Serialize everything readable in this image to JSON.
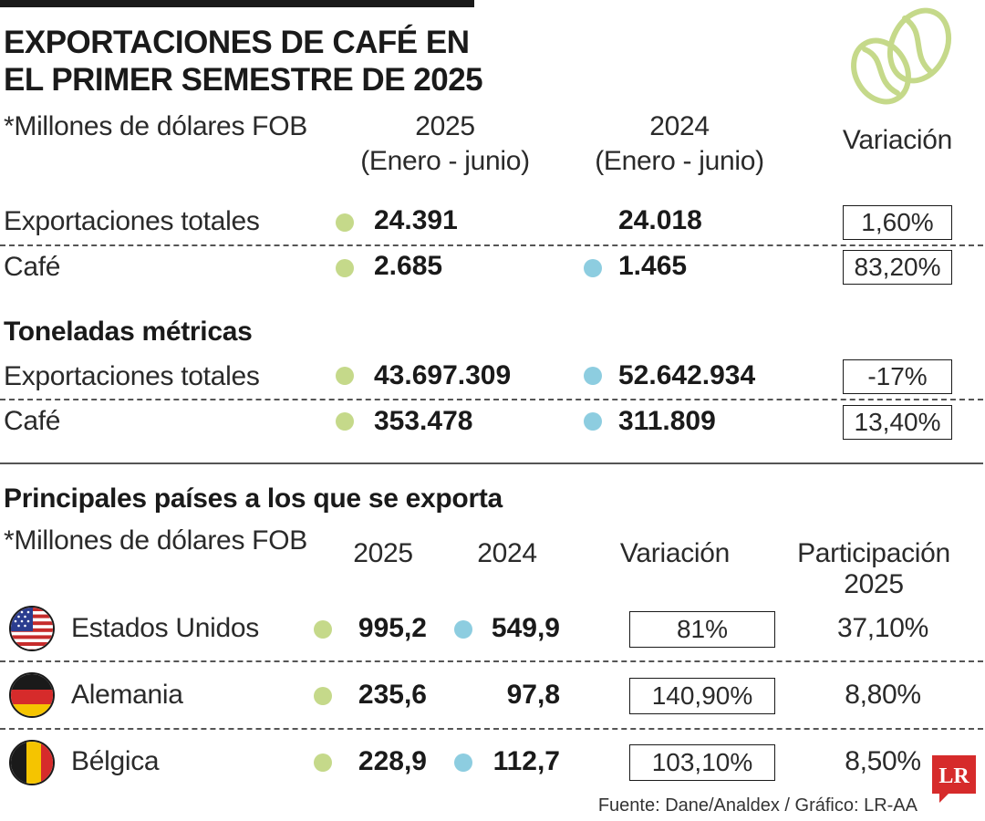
{
  "header": {
    "title_line1": "EXPORTACIONES DE CAFÉ EN",
    "title_line2": "EL PRIMER SEMESTRE DE 2025"
  },
  "summary": {
    "unit_note": "*Millones de dólares FOB",
    "col_2025_year": "2025",
    "col_2025_period": "(Enero - junio)",
    "col_2024_year": "2024",
    "col_2024_period": "(Enero - junio)",
    "col_variation": "Variación",
    "usd_rows": [
      {
        "label": "Exportaciones totales",
        "v2025": "24.391",
        "v2024": "24.018",
        "variation": "1,60%"
      },
      {
        "label": "Café",
        "v2025": "2.685",
        "v2024": "1.465",
        "variation": "83,20%"
      }
    ],
    "tonnes_heading": "Toneladas métricas",
    "tonnes_rows": [
      {
        "label": "Exportaciones totales",
        "v2025": "43.697.309",
        "v2024": "52.642.934",
        "variation": "-17%"
      },
      {
        "label": "Café",
        "v2025": "353.478",
        "v2024": "311.809",
        "variation": "13,40%"
      }
    ]
  },
  "countries": {
    "heading": "Principales países a los que se exporta",
    "unit_note": "*Millones de dólares FOB",
    "col_2025": "2025",
    "col_2024": "2024",
    "col_variation": "Variación",
    "col_share_line1": "Participación",
    "col_share_line2": "2025",
    "rows": [
      {
        "country": "Estados Unidos",
        "flag_icon": "us-flag-icon",
        "v2025": "995,2",
        "v2024": "549,9",
        "variation": "81%",
        "share": "37,10%"
      },
      {
        "country": "Alemania",
        "flag_icon": "germany-flag-icon",
        "v2025": "235,6",
        "v2024": "97,8",
        "variation": "140,90%",
        "share": "8,80%"
      },
      {
        "country": "Bélgica",
        "flag_icon": "belgium-flag-icon",
        "v2025": "228,9",
        "v2024": "112,7",
        "variation": "103,10%",
        "share": "8,50%"
      }
    ]
  },
  "footer": {
    "source": "Fuente: Dane/Analdex / Gráfico: LR-AA",
    "logo_text": "LR"
  },
  "colors": {
    "dot_2025": "#c5d98a",
    "dot_2024": "#8dcde0",
    "logo_red": "#d62b2b",
    "text": "#1a1a1a"
  },
  "icons": {
    "header_illustration": "coffee-beans-icon"
  }
}
